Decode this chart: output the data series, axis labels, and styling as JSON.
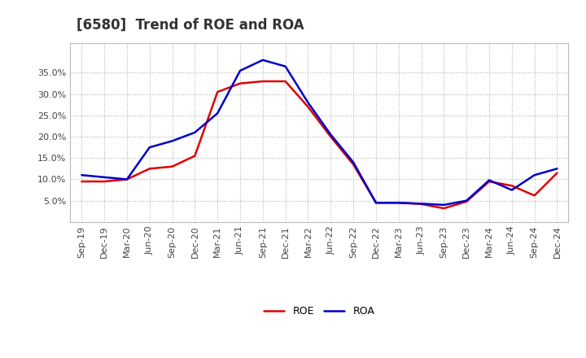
{
  "title": "[6580]  Trend of ROE and ROA",
  "x_labels": [
    "Sep-19",
    "Dec-19",
    "Mar-20",
    "Jun-20",
    "Sep-20",
    "Dec-20",
    "Mar-21",
    "Jun-21",
    "Sep-21",
    "Dec-21",
    "Mar-22",
    "Jun-22",
    "Sep-22",
    "Dec-22",
    "Mar-23",
    "Jun-23",
    "Sep-23",
    "Dec-23",
    "Mar-24",
    "Jun-24",
    "Sep-24",
    "Dec-24"
  ],
  "roe": [
    9.5,
    9.5,
    10.0,
    12.5,
    13.0,
    15.5,
    30.5,
    32.5,
    33.0,
    33.0,
    27.0,
    20.0,
    13.5,
    4.5,
    4.5,
    4.2,
    3.2,
    4.8,
    9.5,
    8.5,
    6.2,
    11.5
  ],
  "roa": [
    11.0,
    10.5,
    10.0,
    17.5,
    19.0,
    21.0,
    25.5,
    35.5,
    38.0,
    36.5,
    28.0,
    20.5,
    14.0,
    4.5,
    4.5,
    4.3,
    4.0,
    5.0,
    9.8,
    7.5,
    11.0,
    12.5
  ],
  "roe_color": "#dd0000",
  "roa_color": "#0000cc",
  "line_width": 1.8,
  "background_color": "#ffffff",
  "grid_color": "#aaaaaa",
  "ylim": [
    0,
    42
  ],
  "yticks": [
    5.0,
    10.0,
    15.0,
    20.0,
    25.0,
    30.0,
    35.0
  ],
  "title_fontsize": 12,
  "tick_fontsize": 8,
  "legend_fontsize": 9
}
